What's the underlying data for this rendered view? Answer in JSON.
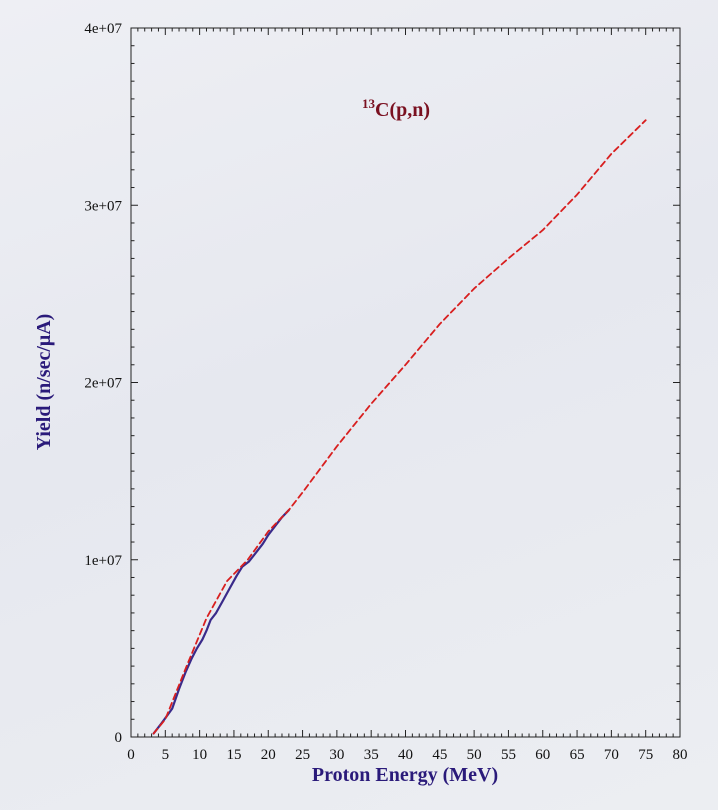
{
  "chart_data": {
    "type": "line",
    "xlabel": "Proton Energy (MeV)",
    "ylabel": "Yield (n/sec/μA)",
    "annotation": {
      "superscript": "13",
      "text": "C(p,n)"
    },
    "xlim": [
      0,
      80
    ],
    "ylim": [
      0,
      40000000
    ],
    "x_ticks": [
      0,
      5,
      10,
      15,
      20,
      25,
      30,
      35,
      40,
      45,
      50,
      55,
      60,
      65,
      70,
      75,
      80
    ],
    "x_tick_labels": [
      "0",
      "5",
      "10",
      "15",
      "20",
      "25",
      "30",
      "35",
      "40",
      "45",
      "50",
      "55",
      "60",
      "65",
      "70",
      "75",
      "80"
    ],
    "y_ticks": [
      0,
      10000000,
      20000000,
      30000000,
      40000000
    ],
    "y_tick_labels": [
      "0",
      "1e+07",
      "2e+07",
      "3e+07",
      "4e+07"
    ],
    "grid": false,
    "series": [
      {
        "style": "solid",
        "color": "#3a2a8a",
        "x": [
          3.3,
          4.5,
          6,
          7,
          8,
          8.8,
          9.6,
          10.4,
          11,
          11.6,
          12.4,
          13.4,
          14.4,
          15.4,
          16.2,
          17.2,
          18.2,
          19.2,
          20.0,
          21.0,
          22.0,
          23.0
        ],
        "y": [
          200000,
          800000,
          1600000,
          2700000,
          3700000,
          4400000,
          5000000,
          5500000,
          6000000,
          6600000,
          7000000,
          7700000,
          8400000,
          9100000,
          9600000,
          9900000,
          10400000,
          10900000,
          11400000,
          11900000,
          12400000,
          12800000
        ]
      },
      {
        "style": "dashed",
        "color": "#d81f1f",
        "x": [
          3.3,
          5,
          8,
          11,
          14,
          17,
          20,
          23,
          25,
          30,
          35,
          40,
          45,
          50,
          55,
          60,
          65,
          70,
          75
        ],
        "y": [
          200000,
          1000000,
          3900000,
          6700000,
          8800000,
          10000000,
          11600000,
          12800000,
          13800000,
          16400000,
          18800000,
          21000000,
          23300000,
          25300000,
          27000000,
          28600000,
          30600000,
          32900000,
          34800000
        ]
      }
    ]
  }
}
